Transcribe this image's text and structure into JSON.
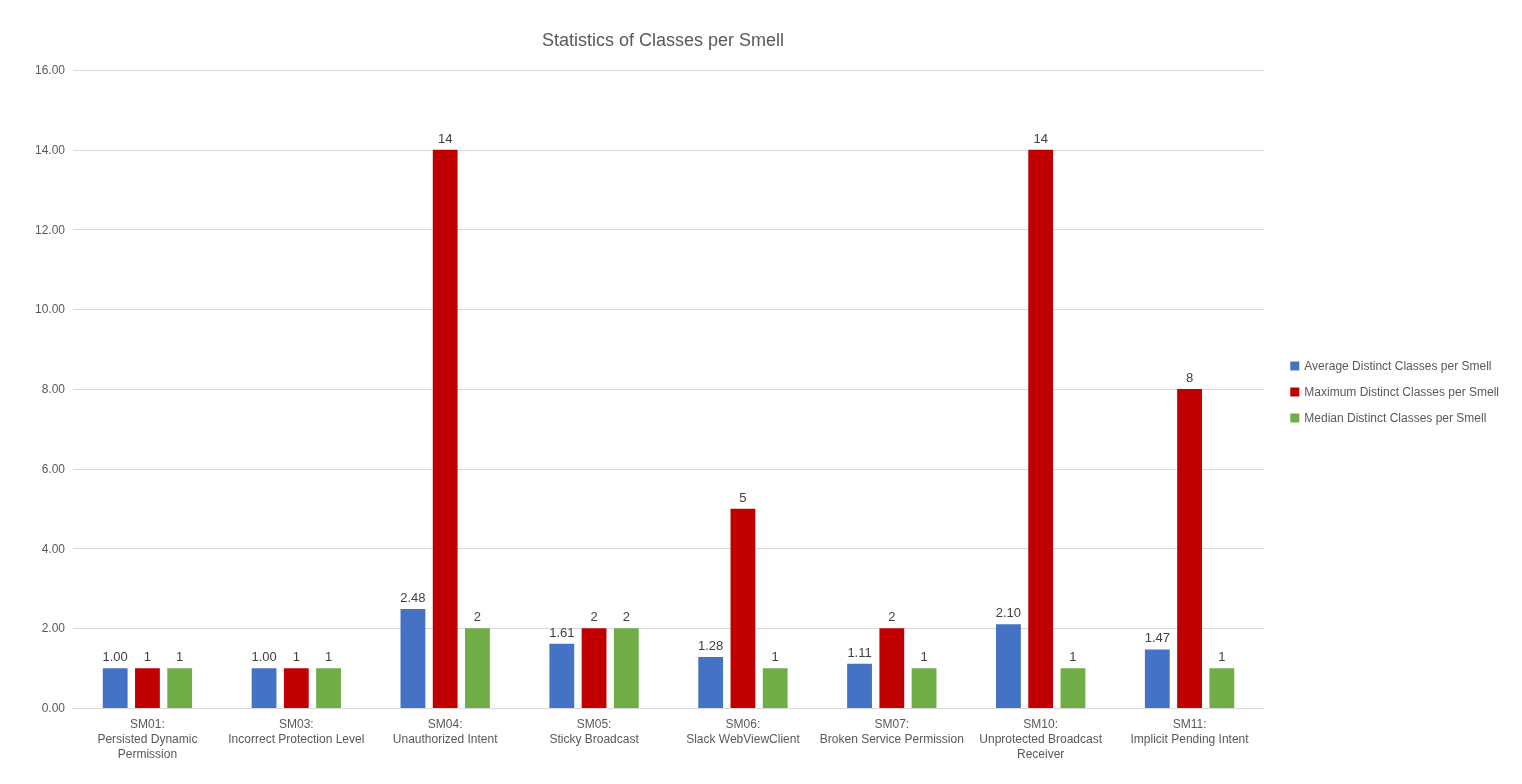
{
  "chart_data": {
    "type": "bar",
    "title": "Statistics of Classes per Smell",
    "categories": [
      "SM01: Persisted Dynamic Permission",
      "SM03: Incorrect Protection Level",
      "SM04: Unauthorized Intent",
      "SM05: Sticky Broadcast",
      "SM06: Slack WebViewClient",
      "SM07: Broken Service Permission",
      "SM10: Unprotected Broadcast Receiver",
      "SM11: Implicit Pending Intent"
    ],
    "series": [
      {
        "name": "Average Distinct Classes per Smell",
        "color": "#4472c4",
        "values": [
          1.0,
          1.0,
          2.48,
          1.61,
          1.28,
          1.11,
          2.1,
          1.47
        ],
        "value_labels": [
          "1.00",
          "1.00",
          "2.48",
          "1.61",
          "1.28",
          "1.11",
          "2.10",
          "1.47"
        ]
      },
      {
        "name": "Maximum Distinct Classes per Smell",
        "color": "#c00000",
        "values": [
          1,
          1,
          14,
          2,
          5,
          2,
          14,
          8
        ],
        "value_labels": [
          "1",
          "1",
          "14",
          "2",
          "5",
          "2",
          "14",
          "8"
        ]
      },
      {
        "name": "Median Distinct Classes per Smell",
        "color": "#70ad47",
        "values": [
          1,
          1,
          2,
          2,
          1,
          1,
          1,
          1
        ],
        "value_labels": [
          "1",
          "1",
          "2",
          "2",
          "1",
          "1",
          "1",
          "1"
        ]
      }
    ],
    "ylim": [
      0,
      16
    ],
    "yticks": [
      {
        "value": 0,
        "label": "0.00"
      },
      {
        "value": 2,
        "label": "2.00"
      },
      {
        "value": 4,
        "label": "4.00"
      },
      {
        "value": 6,
        "label": "6.00"
      },
      {
        "value": 8,
        "label": "8.00"
      },
      {
        "value": 10,
        "label": "10.00"
      },
      {
        "value": 12,
        "label": "12.00"
      },
      {
        "value": 14,
        "label": "14.00"
      },
      {
        "value": 16,
        "label": "16.00"
      }
    ],
    "grid": "y",
    "legend": "right"
  }
}
